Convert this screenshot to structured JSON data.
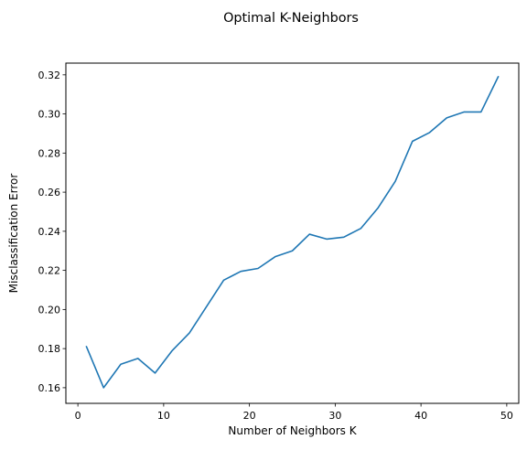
{
  "figure": {
    "suptitle": "Optimal K-Neighbors"
  },
  "chart_data": {
    "type": "line",
    "title": "",
    "xlabel": "Number of Neighbors K",
    "ylabel": "Misclassification Error",
    "xlim": [
      -1.4,
      51.4
    ],
    "ylim": [
      0.152,
      0.326
    ],
    "xticks": [
      0,
      10,
      20,
      30,
      40,
      50
    ],
    "xtick_labels": [
      "0",
      "10",
      "20",
      "30",
      "40",
      "50"
    ],
    "yticks": [
      0.16,
      0.18,
      0.2,
      0.22,
      0.24,
      0.26,
      0.28,
      0.3,
      0.32
    ],
    "ytick_labels": [
      "0.16",
      "0.18",
      "0.20",
      "0.22",
      "0.24",
      "0.26",
      "0.28",
      "0.30",
      "0.32"
    ],
    "grid": false,
    "legend": false,
    "series": [
      {
        "color": "#1f77b4",
        "x": [
          1,
          3,
          5,
          7,
          9,
          11,
          13,
          15,
          17,
          19,
          21,
          23,
          25,
          27,
          29,
          31,
          33,
          35,
          37,
          39,
          41,
          43,
          45,
          47,
          49
        ],
        "y": [
          0.181,
          0.16,
          0.172,
          0.175,
          0.1675,
          0.179,
          0.188,
          0.2015,
          0.215,
          0.2195,
          0.221,
          0.227,
          0.23,
          0.2385,
          0.236,
          0.237,
          0.2415,
          0.252,
          0.2655,
          0.286,
          0.2905,
          0.298,
          0.301,
          0.301,
          0.319
        ]
      }
    ]
  }
}
